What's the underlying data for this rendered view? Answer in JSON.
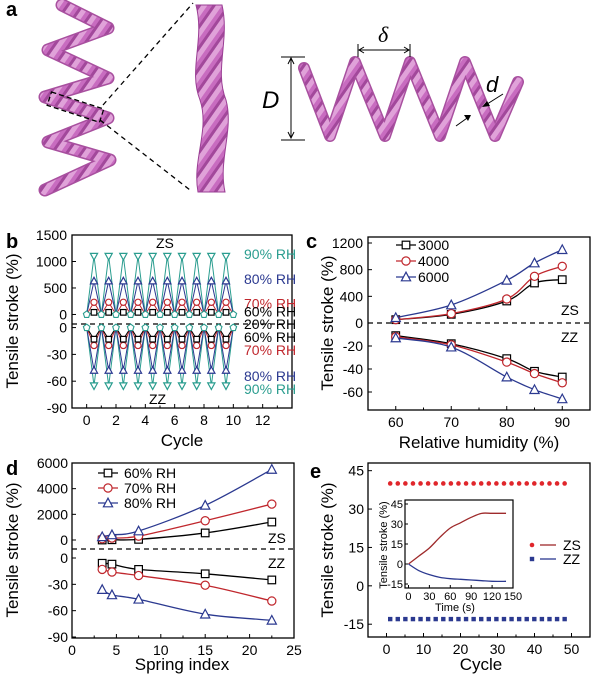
{
  "figure": {
    "panel_labels": [
      "a",
      "b",
      "c",
      "d",
      "e"
    ],
    "panel_a": {
      "annotations": {
        "delta": "δ",
        "D": "D",
        "d": "d"
      },
      "colors": {
        "fiber": "#c86cc0",
        "fiber_light": "#e3a6dc",
        "fiber_dark": "#9a3f94"
      }
    }
  },
  "chart_data": [
    {
      "panel": "b",
      "type": "line",
      "title": "",
      "xlabel": "Cycle",
      "ylabel": "Tensile stroke (%)",
      "xlim": [
        -1,
        14
      ],
      "xticks": [
        0,
        2,
        4,
        6,
        8,
        10,
        12
      ],
      "upper": {
        "label": "ZS",
        "ylim": [
          -180,
          1500
        ],
        "yticks": [
          0,
          500,
          1000,
          1500
        ],
        "series": [
          {
            "name": "60% RH",
            "peak": 40,
            "color": "#000000",
            "marker": "square"
          },
          {
            "name": "70% RH",
            "peak": 230,
            "color": "#c0272d",
            "marker": "circle"
          },
          {
            "name": "80% RH",
            "peak": 630,
            "color": "#2b3990",
            "marker": "triangle-up"
          },
          {
            "name": "90% RH",
            "peak": 1100,
            "color": "#2a9d8f",
            "marker": "triangle-down"
          }
        ]
      },
      "baseline_label": "20% RH",
      "lower": {
        "label": "ZZ",
        "ylim": [
          -90,
          4
        ],
        "yticks": [
          0,
          -30,
          -60,
          -90
        ],
        "series": [
          {
            "name": "60% RH",
            "peak": -13,
            "color": "#000000",
            "marker": "square"
          },
          {
            "name": "70% RH",
            "peak": -20,
            "color": "#c0272d",
            "marker": "circle"
          },
          {
            "name": "80% RH",
            "peak": -48,
            "color": "#2b3990",
            "marker": "triangle-up"
          },
          {
            "name": "90% RH",
            "peak": -65,
            "color": "#2a9d8f",
            "marker": "triangle-down"
          }
        ]
      },
      "cycles": 10
    },
    {
      "panel": "c",
      "type": "line",
      "xlabel": "Relative humidity (%)",
      "ylabel": "Tensile stroke (%)",
      "xlim": [
        55,
        95
      ],
      "xticks": [
        60,
        70,
        80,
        90
      ],
      "x": [
        60,
        70,
        80,
        85,
        90
      ],
      "legend": "top-left",
      "upper": {
        "label": "ZS",
        "ylim": [
          0,
          1200
        ],
        "yticks": [
          0,
          400,
          800,
          1200
        ],
        "series": [
          {
            "name": "3000",
            "values": [
              50,
              130,
              330,
              600,
              650
            ],
            "color": "#000000",
            "marker": "square"
          },
          {
            "name": "4000",
            "values": [
              50,
              140,
              360,
              700,
              850
            ],
            "color": "#c0272d",
            "marker": "circle"
          },
          {
            "name": "6000",
            "values": [
              80,
              270,
              640,
              900,
              1100
            ],
            "color": "#2b3990",
            "marker": "triangle-up"
          }
        ]
      },
      "lower": {
        "label": "ZZ",
        "ylim": [
          -75,
          0
        ],
        "yticks": [
          -20,
          -40,
          -60
        ],
        "series": [
          {
            "name": "3000",
            "values": [
              -11,
              -18,
              -31,
              -42,
              -47
            ],
            "color": "#000000",
            "marker": "square"
          },
          {
            "name": "4000",
            "values": [
              -12,
              -19,
              -34,
              -44,
              -52
            ],
            "color": "#c0272d",
            "marker": "circle"
          },
          {
            "name": "6000",
            "values": [
              -13,
              -21,
              -47,
              -58,
              -66
            ],
            "color": "#2b3990",
            "marker": "triangle-up"
          }
        ]
      }
    },
    {
      "panel": "d",
      "type": "line",
      "xlabel": "Spring index",
      "ylabel": "Tensile stroke (%)",
      "xlim": [
        0,
        25
      ],
      "xticks": [
        0,
        5,
        10,
        15,
        20,
        25
      ],
      "x": [
        3.4,
        4.5,
        7.5,
        15,
        22.5
      ],
      "legend": "top-left",
      "upper": {
        "label": "ZS",
        "ylim": [
          -700,
          6000
        ],
        "yticks": [
          0,
          2000,
          4000,
          6000
        ],
        "series": [
          {
            "name": "60% RH",
            "values": [
              0,
              20,
              50,
              550,
              1400
            ],
            "color": "#000000",
            "marker": "square"
          },
          {
            "name": "70% RH",
            "values": [
              100,
              150,
              300,
              1500,
              2800
            ],
            "color": "#c0272d",
            "marker": "circle"
          },
          {
            "name": "80% RH",
            "values": [
              250,
              400,
              700,
              2700,
              5500
            ],
            "color": "#2b3990",
            "marker": "triangle-up"
          }
        ]
      },
      "lower": {
        "label": "ZZ",
        "ylim": [
          -90,
          4
        ],
        "yticks": [
          0,
          -30,
          -60,
          -90
        ],
        "series": [
          {
            "name": "60% RH",
            "values": [
              -6,
              -7,
              -13,
              -18,
              -25
            ],
            "color": "#000000",
            "marker": "square"
          },
          {
            "name": "70% RH",
            "values": [
              -13,
              -16,
              -20,
              -31,
              -49
            ],
            "color": "#c0272d",
            "marker": "circle"
          },
          {
            "name": "80% RH",
            "values": [
              -36,
              -42,
              -47,
              -64,
              -71
            ],
            "color": "#2b3990",
            "marker": "triangle-up"
          }
        ]
      }
    },
    {
      "panel": "e",
      "type": "scatter",
      "xlabel": "Cycle",
      "ylabel": "Tensile stroke (%)",
      "xlim": [
        -5,
        55
      ],
      "ylim": [
        -20,
        48
      ],
      "xticks": [
        0,
        10,
        20,
        30,
        40,
        50
      ],
      "yticks": [
        -15,
        0,
        15,
        30,
        45
      ],
      "legend": "right",
      "series": [
        {
          "name": "ZS",
          "value": 40,
          "n_cycles": 50,
          "color": "#e0262b",
          "marker": "circle"
        },
        {
          "name": "ZZ",
          "value": -13,
          "n_cycles": 50,
          "color": "#2b3990",
          "marker": "square"
        }
      ],
      "inset": {
        "type": "line",
        "xlabel": "Time (s)",
        "ylabel": "Tensile stroke (%)",
        "xlim": [
          -5,
          150
        ],
        "ylim": [
          -18,
          48
        ],
        "xticks": [
          0,
          30,
          60,
          90,
          120,
          150
        ],
        "yticks": [
          -15,
          0,
          15,
          30,
          45
        ],
        "series": [
          {
            "name": "ZS",
            "x": [
              0,
              15,
              30,
              45,
              60,
              75,
              90,
              105,
              120,
              140
            ],
            "values": [
              0,
              6,
              12,
              20,
              27,
              31,
              35,
              38,
              38,
              38
            ],
            "color": "#9e2a2b"
          },
          {
            "name": "ZZ",
            "x": [
              0,
              15,
              30,
              45,
              60,
              75,
              90,
              105,
              120,
              140
            ],
            "values": [
              0,
              -5,
              -8,
              -10,
              -11,
              -11.5,
              -12,
              -12.5,
              -13,
              -13
            ],
            "color": "#2b3990"
          }
        ]
      }
    }
  ]
}
